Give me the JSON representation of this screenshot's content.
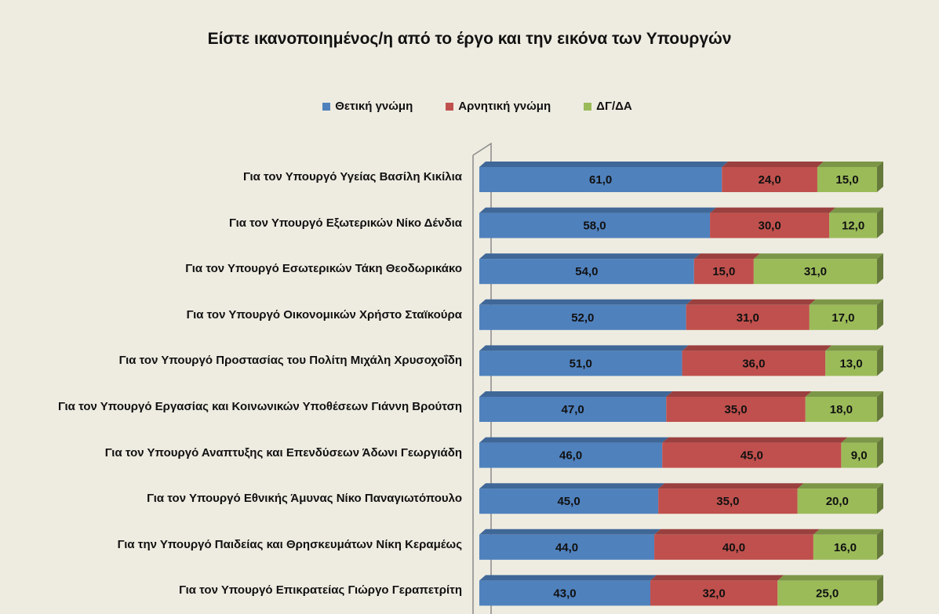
{
  "chart_data": {
    "type": "bar",
    "orientation": "horizontal",
    "stacked": true,
    "title": "Είστε ικανοποιημένος/η από το έργο και την εικόνα των Υπουργών",
    "xlabel": "",
    "ylabel": "",
    "xlim": [
      0,
      100
    ],
    "grid": false,
    "legend_position": "top",
    "categories": [
      "Για τον Υπουργό Υγείας Βασίλη Κικίλια",
      "Για τον Υπουργό Εξωτερικών Νίκο Δένδια",
      "Για τον Υπουργό Εσωτερικών Τάκη Θεοδωρικάκο",
      "Για τον Υπουργό Οικονομικών Χρήστο Σταϊκούρα",
      "Για τον Υπουργό Προστασίας του Πολίτη Μιχάλη Χρυσοχοΐδη",
      "Για τον Υπουργό Εργασίας και Κοινωνικών Υποθέσεων Γιάννη Βρούτση",
      "Για τον Υπουργό Αναπτυξης και Επενδύσεων Άδωνι Γεωργιάδη",
      "Για τον Υπουργό Εθνικής Άμυνας Νίκο Παναγιωτόπουλο",
      "Για την Υπουργό Παιδείας και Θρησκευμάτων Νίκη Κεραμέως",
      "Για τον Υπουργό Επικρατείας Γιώργο Γεραπετρίτη"
    ],
    "series": [
      {
        "name": "Θετική γνώμη",
        "color": "#4F81BD",
        "values": [
          61.0,
          58.0,
          54.0,
          52.0,
          51.0,
          47.0,
          46.0,
          45.0,
          44.0,
          43.0
        ],
        "labels": [
          "61,0",
          "58,0",
          "54,0",
          "52,0",
          "51,0",
          "47,0",
          "46,0",
          "45,0",
          "44,0",
          "43,0"
        ]
      },
      {
        "name": "Αρνητική γνώμη",
        "color": "#C0504D",
        "values": [
          24.0,
          30.0,
          15.0,
          31.0,
          36.0,
          35.0,
          45.0,
          35.0,
          40.0,
          32.0
        ],
        "labels": [
          "24,0",
          "30,0",
          "15,0",
          "31,0",
          "36,0",
          "35,0",
          "45,0",
          "35,0",
          "40,0",
          "32,0"
        ]
      },
      {
        "name": "ΔΓ/ΔΑ",
        "color": "#9BBB59",
        "values": [
          15.0,
          12.0,
          31.0,
          17.0,
          13.0,
          18.0,
          9.0,
          20.0,
          16.0,
          25.0
        ],
        "labels": [
          "15,0",
          "12,0",
          "31,0",
          "17,0",
          "13,0",
          "18,0",
          "9,0",
          "20,0",
          "16,0",
          "25,0"
        ]
      }
    ]
  }
}
